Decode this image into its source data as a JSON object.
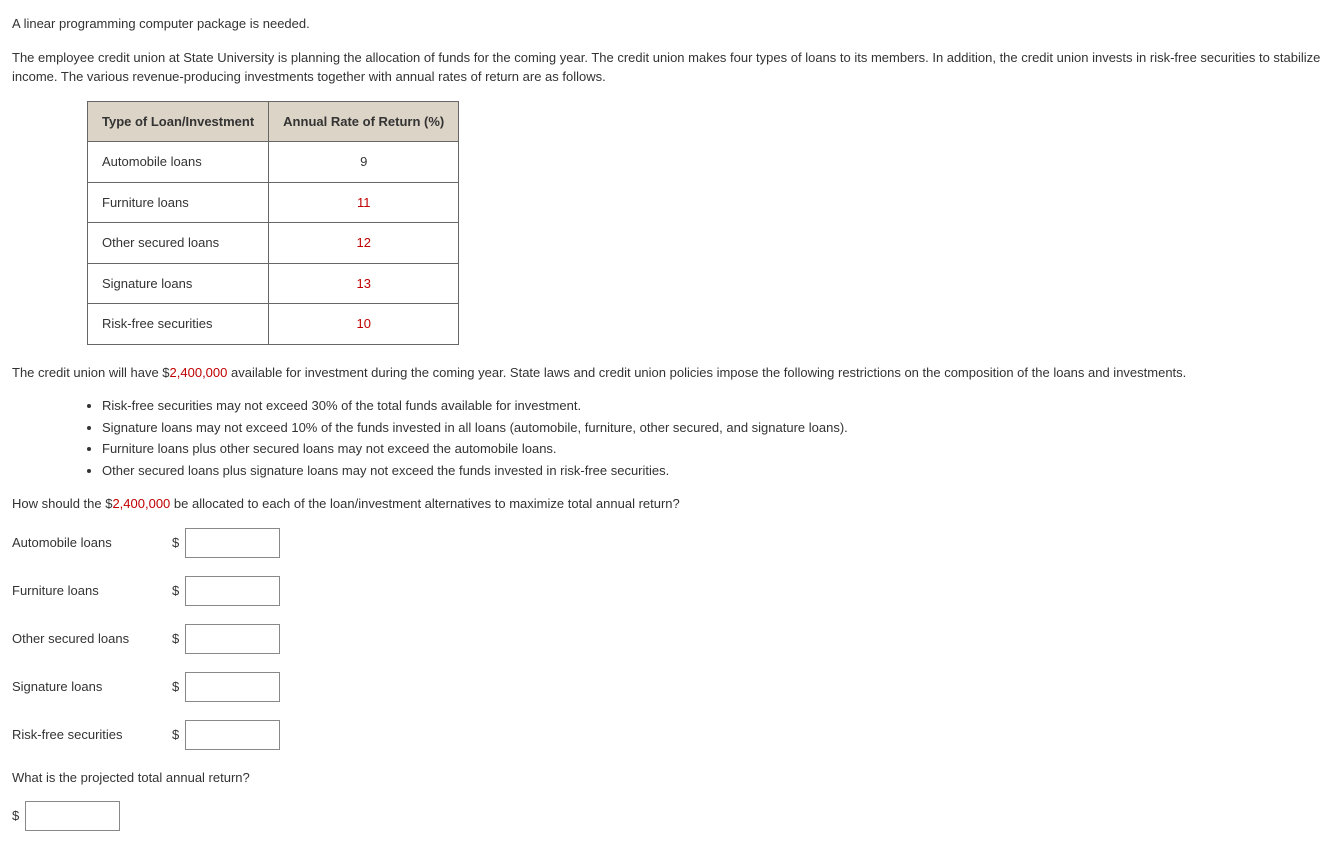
{
  "intro": {
    "line1": "A linear programming computer package is needed.",
    "line2_a": "The employee credit union at State University is planning the allocation of funds for the coming year. The credit union makes four types of loans to its members. In addition, the credit union invests in risk-free securities to stabilize income. The various revenue-producing investments together with annual rates of return are as follows."
  },
  "table": {
    "headers": {
      "col1": "Type of Loan/Investment",
      "col2": "Annual Rate of Return (%)"
    },
    "rows": [
      {
        "type": "Automobile loans",
        "rate": "9",
        "red": false
      },
      {
        "type": "Furniture loans",
        "rate": "11",
        "red": true
      },
      {
        "type": "Other secured loans",
        "rate": "12",
        "red": true
      },
      {
        "type": "Signature loans",
        "rate": "13",
        "red": true
      },
      {
        "type": "Risk-free securities",
        "rate": "10",
        "red": true
      }
    ]
  },
  "colors": {
    "header_bg": "#ddd4c8",
    "border": "#666666",
    "red_text": "#c00000",
    "body_text": "#333333"
  },
  "mid": {
    "pre": "The credit union will have $",
    "amount1": "2,400,000",
    "post": " available for investment during the coming year. State laws and credit union policies impose the following restrictions on the composition of the loans and investments."
  },
  "rules": [
    "Risk-free securities may not exceed 30% of the total funds available for investment.",
    "Signature loans may not exceed 10% of the funds invested in all loans (automobile, furniture, other secured, and signature loans).",
    "Furniture loans plus other secured loans may not exceed the automobile loans.",
    "Other secured loans plus signature loans may not exceed the funds invested in risk-free securities."
  ],
  "question": {
    "pre": "How should the $",
    "amount2": "2,400,000",
    "post": " be allocated to each of the loan/investment alternatives to maximize total annual return?"
  },
  "answers": {
    "currency": "$",
    "fields": [
      {
        "label": "Automobile loans",
        "value": ""
      },
      {
        "label": "Furniture loans",
        "value": ""
      },
      {
        "label": "Other secured loans",
        "value": ""
      },
      {
        "label": "Signature loans",
        "value": ""
      },
      {
        "label": "Risk-free securities",
        "value": ""
      }
    ]
  },
  "total": {
    "question": "What is the projected total annual return?",
    "currency": "$",
    "value": ""
  }
}
